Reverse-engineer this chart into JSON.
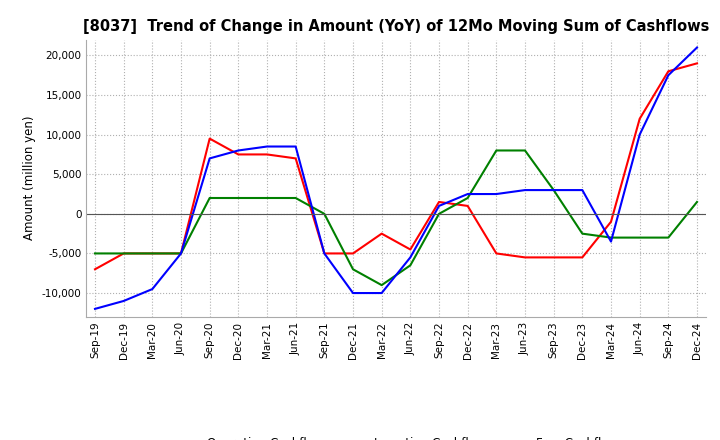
{
  "title": "[8037]  Trend of Change in Amount (YoY) of 12Mo Moving Sum of Cashflows",
  "ylabel": "Amount (million yen)",
  "x_labels": [
    "Sep-19",
    "Dec-19",
    "Mar-20",
    "Jun-20",
    "Sep-20",
    "Dec-20",
    "Mar-21",
    "Jun-21",
    "Sep-21",
    "Dec-21",
    "Mar-22",
    "Jun-22",
    "Sep-22",
    "Dec-22",
    "Mar-23",
    "Jun-23",
    "Sep-23",
    "Dec-23",
    "Mar-24",
    "Jun-24",
    "Sep-24",
    "Dec-24"
  ],
  "operating": [
    -7000,
    -5000,
    -5000,
    -5000,
    9500,
    7500,
    7500,
    7000,
    -5000,
    -5000,
    -2500,
    -4500,
    1500,
    1000,
    -5000,
    -5500,
    -5500,
    -5500,
    -1000,
    12000,
    18000,
    19000
  ],
  "investing": [
    -5000,
    -5000,
    -5000,
    -5000,
    2000,
    2000,
    2000,
    2000,
    0,
    -7000,
    -9000,
    -6500,
    0,
    2000,
    8000,
    8000,
    3000,
    -2500,
    -3000,
    -3000,
    -3000,
    1500
  ],
  "free": [
    -12000,
    -11000,
    -9500,
    -5000,
    7000,
    8000,
    8500,
    8500,
    -5000,
    -10000,
    -10000,
    -5500,
    1000,
    2500,
    2500,
    3000,
    3000,
    3000,
    -3500,
    10000,
    17500,
    21000
  ],
  "ylim": [
    -13000,
    22000
  ],
  "yticks": [
    -10000,
    -5000,
    0,
    5000,
    10000,
    15000,
    20000
  ],
  "operating_color": "#ff0000",
  "investing_color": "#008000",
  "free_color": "#0000ff",
  "background_color": "#ffffff",
  "grid_color": "#b0b0b0",
  "grid_style": ":"
}
